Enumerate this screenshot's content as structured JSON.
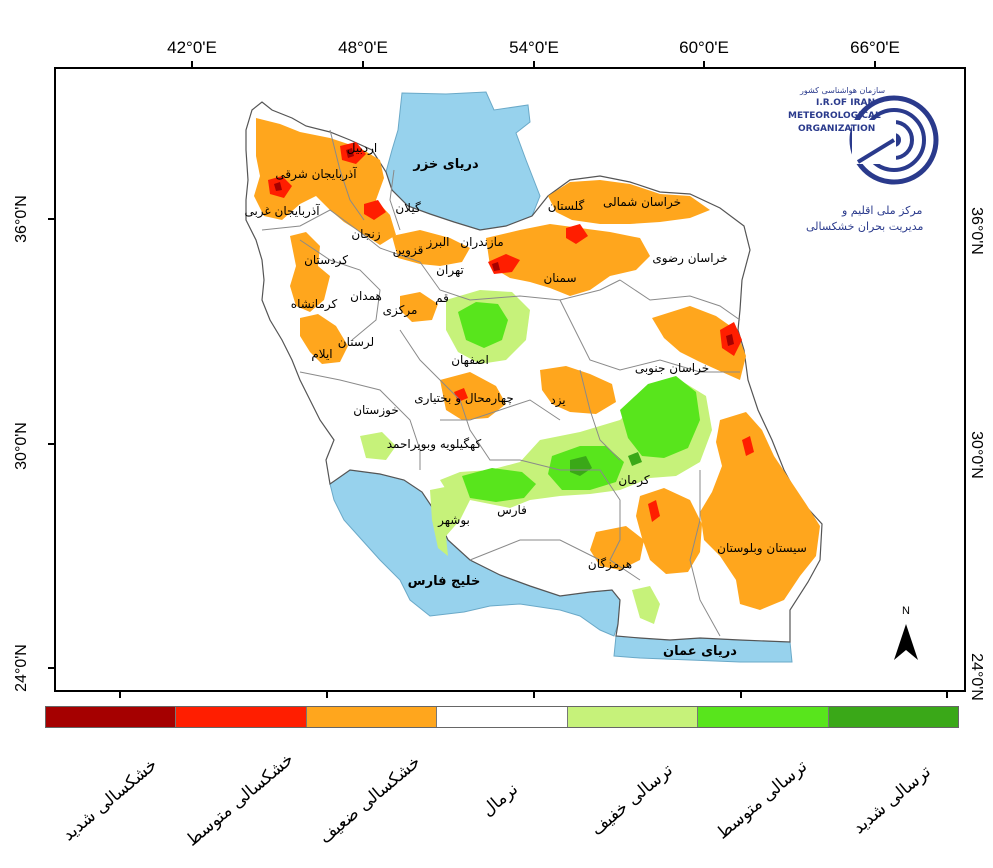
{
  "map": {
    "longitude_labels": [
      "42°0'E",
      "48°0'E",
      "54°0'E",
      "60°0'E",
      "66°0'E"
    ],
    "latitude_labels_left": [
      "36°0'N",
      "30°0'N",
      "24°0'N"
    ],
    "latitude_labels_right": [
      "36°0'N",
      "30°0'N",
      "24°0'N"
    ],
    "north_label": "N",
    "seas": {
      "caspian": "دریای خزر",
      "persian_gulf": "خلیج فارس",
      "oman_sea": "دریای عمان"
    },
    "provinces": {
      "ardabil": "اردبیل",
      "east_azerbaijan": "آذربایجان شرقی",
      "west_azerbaijan": "آذربایجان غربی",
      "gilan": "گیلان",
      "zanjan": "زنجان",
      "kurdistan": "کردستان",
      "qazvin": "قزوین",
      "alborz": "البرز",
      "mazandaran": "مازندران",
      "golestan": "گلستان",
      "north_khorasan": "خراسان شمالی",
      "razavi_khorasan": "خراسان رضوی",
      "tehran": "تهران",
      "semnan": "سمنان",
      "hamedan": "همدان",
      "qom": "قم",
      "kermanshah": "کرمانشاه",
      "markazi": "مرکزی",
      "lorestan": "لرستان",
      "ilam": "ایلام",
      "isfahan": "اصفهان",
      "south_khorasan": "خراسان جنوبی",
      "khuzestan": "خوزستان",
      "chaharmahal": "چهارمحال و بختیاری",
      "yazd": "یزد",
      "kohgiluyeh": "کهگیلویه وبویراحمد",
      "kerman": "کرمان",
      "bushehr": "بوشهر",
      "fars": "فارس",
      "sistan": "سیستان وبلوستان",
      "hormozgan": "هرمزگان"
    }
  },
  "logo": {
    "line1": "سازمان هواشناسی کشور",
    "line2": "I.R.OF IRAN",
    "line3": "METEOROLOGICAL",
    "line4": "ORGANIZATION",
    "line5": "مرکز ملی اقلیم و",
    "line6": "مدیریت بحران خشکسالی"
  },
  "legend": [
    {
      "label": "خشکسالی شدید",
      "color": "#a50000"
    },
    {
      "label": "خشکسالی متوسط",
      "color": "#ff1e00"
    },
    {
      "label": "خشکسالی ضعیف",
      "color": "#ffa61d"
    },
    {
      "label": "نرمال",
      "color": "#ffffff"
    },
    {
      "label": "ترسالی خفیف",
      "color": "#c6f27a"
    },
    {
      "label": "ترسالی متوسط",
      "color": "#58e51c"
    },
    {
      "label": "ترسالی شدید",
      "color": "#3aa818"
    }
  ],
  "colors": {
    "water": "#97d2ed",
    "border": "#8a8a8a",
    "logo": "#2a3a8c"
  }
}
